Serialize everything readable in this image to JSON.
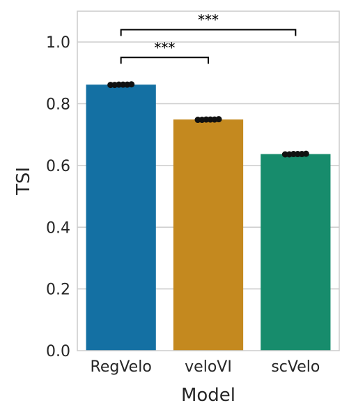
{
  "chart_data": {
    "type": "bar",
    "categories": [
      "RegVelo",
      "veloVI",
      "scVelo"
    ],
    "values": [
      0.862,
      0.749,
      0.637
    ],
    "points": [
      [
        0.861,
        0.861,
        0.862,
        0.862,
        0.862,
        0.863
      ],
      [
        0.748,
        0.748,
        0.749,
        0.749,
        0.749,
        0.75
      ],
      [
        0.636,
        0.636,
        0.637,
        0.637,
        0.637,
        0.638
      ]
    ],
    "colors": [
      "#1470a3",
      "#c4891f",
      "#178c6c"
    ],
    "xlabel": "Model",
    "ylabel": "TSI",
    "ylim": [
      0,
      1.1
    ],
    "yticks": [
      "0.0",
      "0.2",
      "0.4",
      "0.6",
      "0.8",
      "1.0"
    ],
    "ytick_values": [
      0,
      0.2,
      0.4,
      0.6,
      0.8,
      1.0
    ],
    "grid": true,
    "annotations": [
      {
        "from": "RegVelo",
        "to": "veloVI",
        "y": 0.95,
        "label": "***"
      },
      {
        "from": "RegVelo",
        "to": "scVelo",
        "y": 1.04,
        "label": "***"
      }
    ]
  }
}
